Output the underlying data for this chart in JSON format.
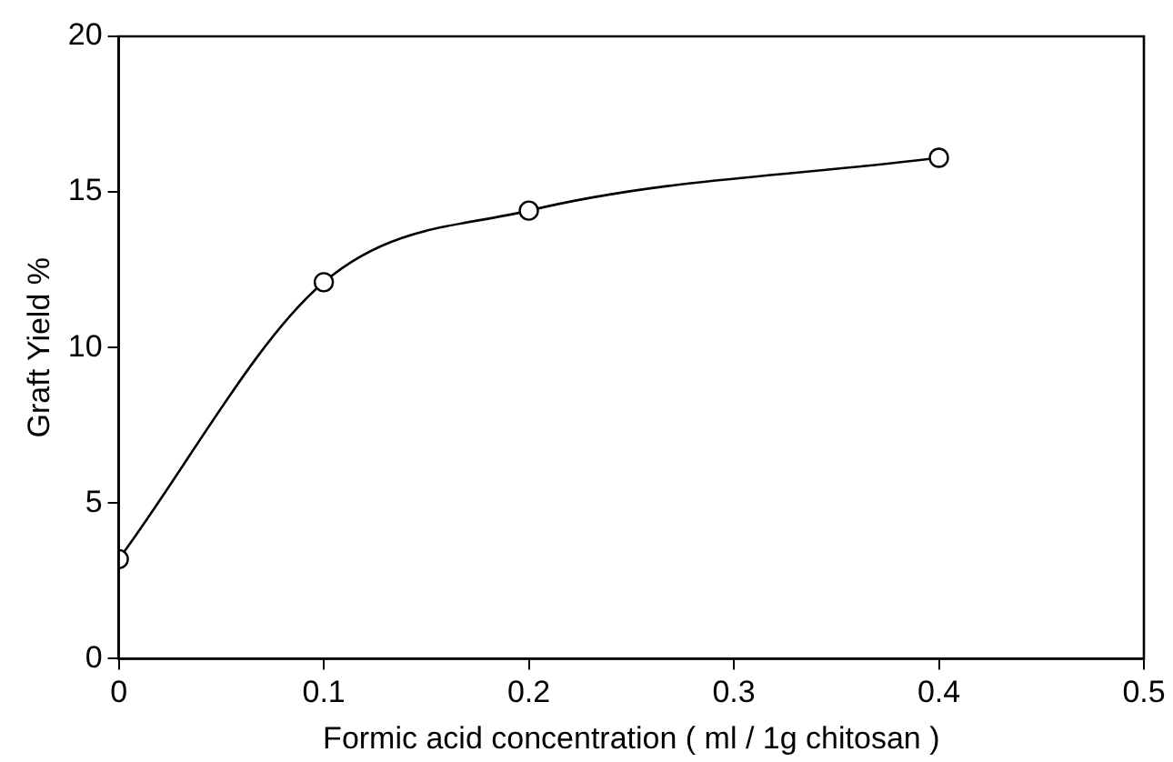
{
  "chart_data": {
    "type": "line",
    "xlabel": "Formic acid concentration ( ml / 1g chitosan )",
    "ylabel": "Graft Yield %",
    "x": [
      0,
      0.1,
      0.2,
      0.4
    ],
    "series": [
      {
        "color": "#000000",
        "values": [
          3.2,
          12.1,
          14.4,
          16.1
        ]
      }
    ],
    "xlim": [
      0,
      0.5
    ],
    "xticks": [
      0,
      0.1,
      0.2,
      0.3,
      0.4,
      0.5
    ],
    "ylim": [
      0,
      20
    ],
    "yticks": [
      0,
      5,
      10,
      15,
      20
    ],
    "grid": false,
    "legend": false,
    "marker": "circle",
    "line_style": "solid"
  }
}
